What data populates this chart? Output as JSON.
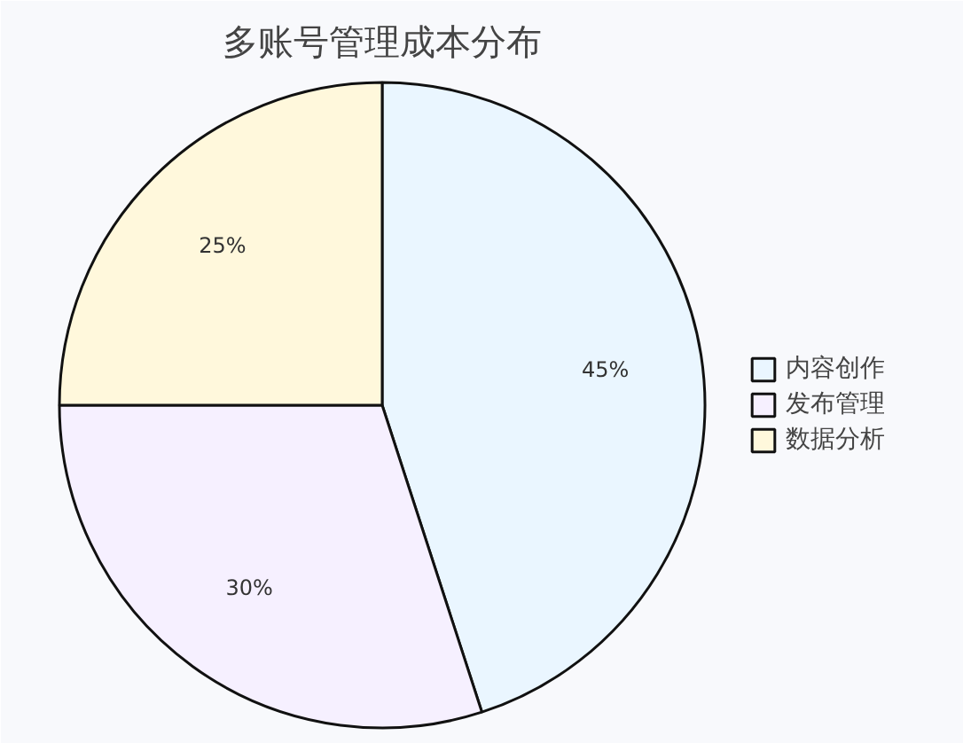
{
  "chart_data": {
    "type": "pie",
    "title": "多账号管理成本分布",
    "categories": [
      "内容创作",
      "发布管理",
      "数据分析"
    ],
    "values": [
      45,
      30,
      25
    ],
    "value_labels": [
      "45%",
      "30%",
      "25%"
    ],
    "colors": [
      "#eaf6ff",
      "#f6f0ff",
      "#fff8dc"
    ],
    "legend": "right"
  }
}
